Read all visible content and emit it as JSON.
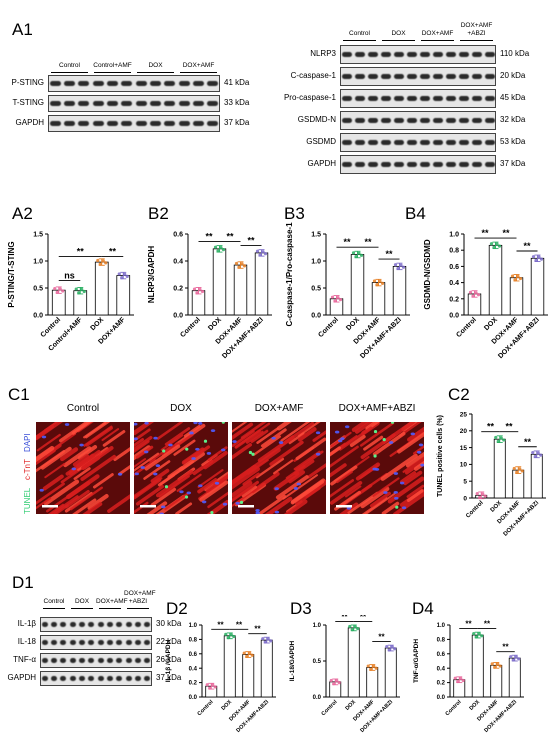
{
  "panels": {
    "A1": "A1",
    "A2": "A2",
    "B2": "B2",
    "B3": "B3",
    "B4": "B4",
    "C1": "C1",
    "C2": "C2",
    "D1": "D1",
    "D2": "D2",
    "D3": "D3",
    "D4": "D4"
  },
  "blot_a1_left": {
    "groups": [
      "Control",
      "Control+AMF",
      "DOX",
      "DOX+AMF"
    ],
    "rows": [
      {
        "name": "P-STING",
        "kda": "41 kDa"
      },
      {
        "name": "T-STING",
        "kda": "33 kDa"
      },
      {
        "name": "GAPDH",
        "kda": "37 kDa"
      }
    ]
  },
  "blot_a1_right": {
    "groups": [
      "Control",
      "DOX",
      "DOX+AMF",
      "DOX+AMF\n+ABZI"
    ],
    "rows": [
      {
        "name": "NLRP3",
        "kda": "110 kDa"
      },
      {
        "name": "C-caspase-1",
        "kda": "20 kDa"
      },
      {
        "name": "Pro-caspase-1",
        "kda": "45 kDa"
      },
      {
        "name": "GSDMD-N",
        "kda": "32 kDa"
      },
      {
        "name": "GSDMD",
        "kda": "53 kDa"
      },
      {
        "name": "GAPDH",
        "kda": "37 kDa"
      }
    ]
  },
  "blot_d1": {
    "groups": [
      "Control",
      "DOX",
      "DOX+AMF",
      "DOX+AMF\n+ABZI"
    ],
    "rows": [
      {
        "name": "IL-1β",
        "kda": "30 kDa"
      },
      {
        "name": "IL-18",
        "kda": "22 kDa"
      },
      {
        "name": "TNF-α",
        "kda": "26 kDa"
      },
      {
        "name": "GAPDH",
        "kda": "37 kDa"
      }
    ]
  },
  "c1_images": {
    "captions": [
      "Control",
      "DOX",
      "DOX+AMF",
      "DOX+AMF+ABZI"
    ],
    "stain_labels": [
      "TUNEL",
      "c-TnT",
      "DAPI"
    ],
    "stain_colors": [
      "#2ecc71",
      "#e02020",
      "#3a4fd8"
    ]
  },
  "chart_data": [
    {
      "id": "A2",
      "type": "bar",
      "categories": [
        "Control",
        "Control+AMF",
        "DOX",
        "DOX+AMF"
      ],
      "values": [
        0.46,
        0.45,
        0.98,
        0.73
      ],
      "ylabel": "P-STING/T-STING",
      "ylim": [
        0,
        1.5
      ],
      "ticks": [
        0.0,
        0.5,
        1.0,
        1.5
      ],
      "colors": [
        "#e8659a",
        "#27ae60",
        "#e67e22",
        "#7b6bc9"
      ],
      "brackets": [
        {
          "from": 0,
          "to": 1,
          "text": "ns"
        },
        {
          "from": 0,
          "to": 2,
          "text": "**"
        },
        {
          "from": 2,
          "to": 3,
          "text": "**"
        }
      ]
    },
    {
      "id": "B2",
      "type": "bar",
      "categories": [
        "Control",
        "DOX",
        "DOX+AMF",
        "DOX+AMF+ABZI"
      ],
      "values": [
        0.18,
        0.49,
        0.37,
        0.46
      ],
      "ylabel": "NLRP3/GAPDH",
      "ylim": [
        0,
        0.6
      ],
      "ticks": [
        0.0,
        0.2,
        0.4,
        0.6
      ],
      "colors": [
        "#e8659a",
        "#27ae60",
        "#e67e22",
        "#7b6bc9"
      ],
      "brackets": [
        {
          "from": 0,
          "to": 1,
          "text": "**"
        },
        {
          "from": 1,
          "to": 2,
          "text": "**"
        },
        {
          "from": 2,
          "to": 3,
          "text": "**"
        }
      ]
    },
    {
      "id": "B3",
      "type": "bar",
      "categories": [
        "Control",
        "DOX",
        "DOX+AMF",
        "DOX+AMF+ABZI"
      ],
      "values": [
        0.3,
        1.12,
        0.6,
        0.9
      ],
      "ylabel": "C-caspase-1/Pro-caspase-1",
      "ylim": [
        0,
        1.5
      ],
      "ticks": [
        0.0,
        0.5,
        1.0,
        1.5
      ],
      "colors": [
        "#e8659a",
        "#27ae60",
        "#e67e22",
        "#7b6bc9"
      ],
      "brackets": [
        {
          "from": 0,
          "to": 1,
          "text": "**"
        },
        {
          "from": 1,
          "to": 2,
          "text": "**"
        },
        {
          "from": 2,
          "to": 3,
          "text": "**"
        }
      ]
    },
    {
      "id": "B4",
      "type": "bar",
      "categories": [
        "Control",
        "DOX",
        "DOX+AMF",
        "DOX+AMF+ABZI"
      ],
      "values": [
        0.26,
        0.86,
        0.46,
        0.7
      ],
      "ylabel": "GSDMD-N/GSDMD",
      "ylim": [
        0,
        1.0
      ],
      "ticks": [
        0.0,
        0.2,
        0.4,
        0.6,
        0.8,
        1.0
      ],
      "colors": [
        "#e8659a",
        "#27ae60",
        "#e67e22",
        "#7b6bc9"
      ],
      "brackets": [
        {
          "from": 0,
          "to": 1,
          "text": "**"
        },
        {
          "from": 1,
          "to": 2,
          "text": "**"
        },
        {
          "from": 2,
          "to": 3,
          "text": "**"
        }
      ]
    },
    {
      "id": "C2",
      "type": "bar",
      "categories": [
        "Control",
        "DOX",
        "DOX+AMF",
        "DOX+AMF+ABZI"
      ],
      "values": [
        0.8,
        17.5,
        8.3,
        13.0
      ],
      "ylabel": "TUNEL positive cells (%)",
      "ylim": [
        0,
        25
      ],
      "ticks": [
        0,
        5,
        10,
        15,
        20,
        25
      ],
      "colors": [
        "#e8659a",
        "#27ae60",
        "#e67e22",
        "#7b6bc9"
      ],
      "brackets": [
        {
          "from": 0,
          "to": 1,
          "text": "**"
        },
        {
          "from": 1,
          "to": 2,
          "text": "**"
        },
        {
          "from": 2,
          "to": 3,
          "text": "**"
        }
      ]
    },
    {
      "id": "D2",
      "type": "bar",
      "categories": [
        "Control",
        "DOX",
        "DOX+AMF",
        "DOX+AMF+ABZI"
      ],
      "values": [
        0.15,
        0.85,
        0.59,
        0.79
      ],
      "ylabel": "IL-1β /GAPDH",
      "ylim": [
        0,
        1.0
      ],
      "ticks": [
        0.0,
        0.2,
        0.4,
        0.6,
        0.8,
        1.0
      ],
      "colors": [
        "#e8659a",
        "#27ae60",
        "#e67e22",
        "#7b6bc9"
      ],
      "brackets": [
        {
          "from": 0,
          "to": 1,
          "text": "**"
        },
        {
          "from": 1,
          "to": 2,
          "text": "**"
        },
        {
          "from": 2,
          "to": 3,
          "text": "**"
        }
      ]
    },
    {
      "id": "D3",
      "type": "bar",
      "categories": [
        "Control",
        "DOX",
        "DOX+AMF",
        "DOX+AMF+ABZI"
      ],
      "values": [
        0.21,
        0.96,
        0.41,
        0.68
      ],
      "ylabel": "IL-18/GAPDH",
      "ylim": [
        0,
        1.0
      ],
      "ticks": [
        0.0,
        0.5,
        1.0
      ],
      "colors": [
        "#e8659a",
        "#27ae60",
        "#e67e22",
        "#7b6bc9"
      ],
      "brackets": [
        {
          "from": 0,
          "to": 1,
          "text": "**"
        },
        {
          "from": 1,
          "to": 2,
          "text": "**"
        },
        {
          "from": 2,
          "to": 3,
          "text": "**"
        }
      ]
    },
    {
      "id": "D4",
      "type": "bar",
      "categories": [
        "Control",
        "DOX",
        "DOX+AMF",
        "DOX+AMF+ABZI"
      ],
      "values": [
        0.24,
        0.86,
        0.44,
        0.54
      ],
      "ylabel": "TNF-α/GAPDH",
      "ylim": [
        0,
        1.0
      ],
      "ticks": [
        0.0,
        0.2,
        0.4,
        0.6,
        0.8,
        1.0
      ],
      "colors": [
        "#e8659a",
        "#27ae60",
        "#e67e22",
        "#7b6bc9"
      ],
      "brackets": [
        {
          "from": 0,
          "to": 1,
          "text": "**"
        },
        {
          "from": 1,
          "to": 2,
          "text": "**"
        },
        {
          "from": 2,
          "to": 3,
          "text": "**"
        }
      ]
    }
  ]
}
